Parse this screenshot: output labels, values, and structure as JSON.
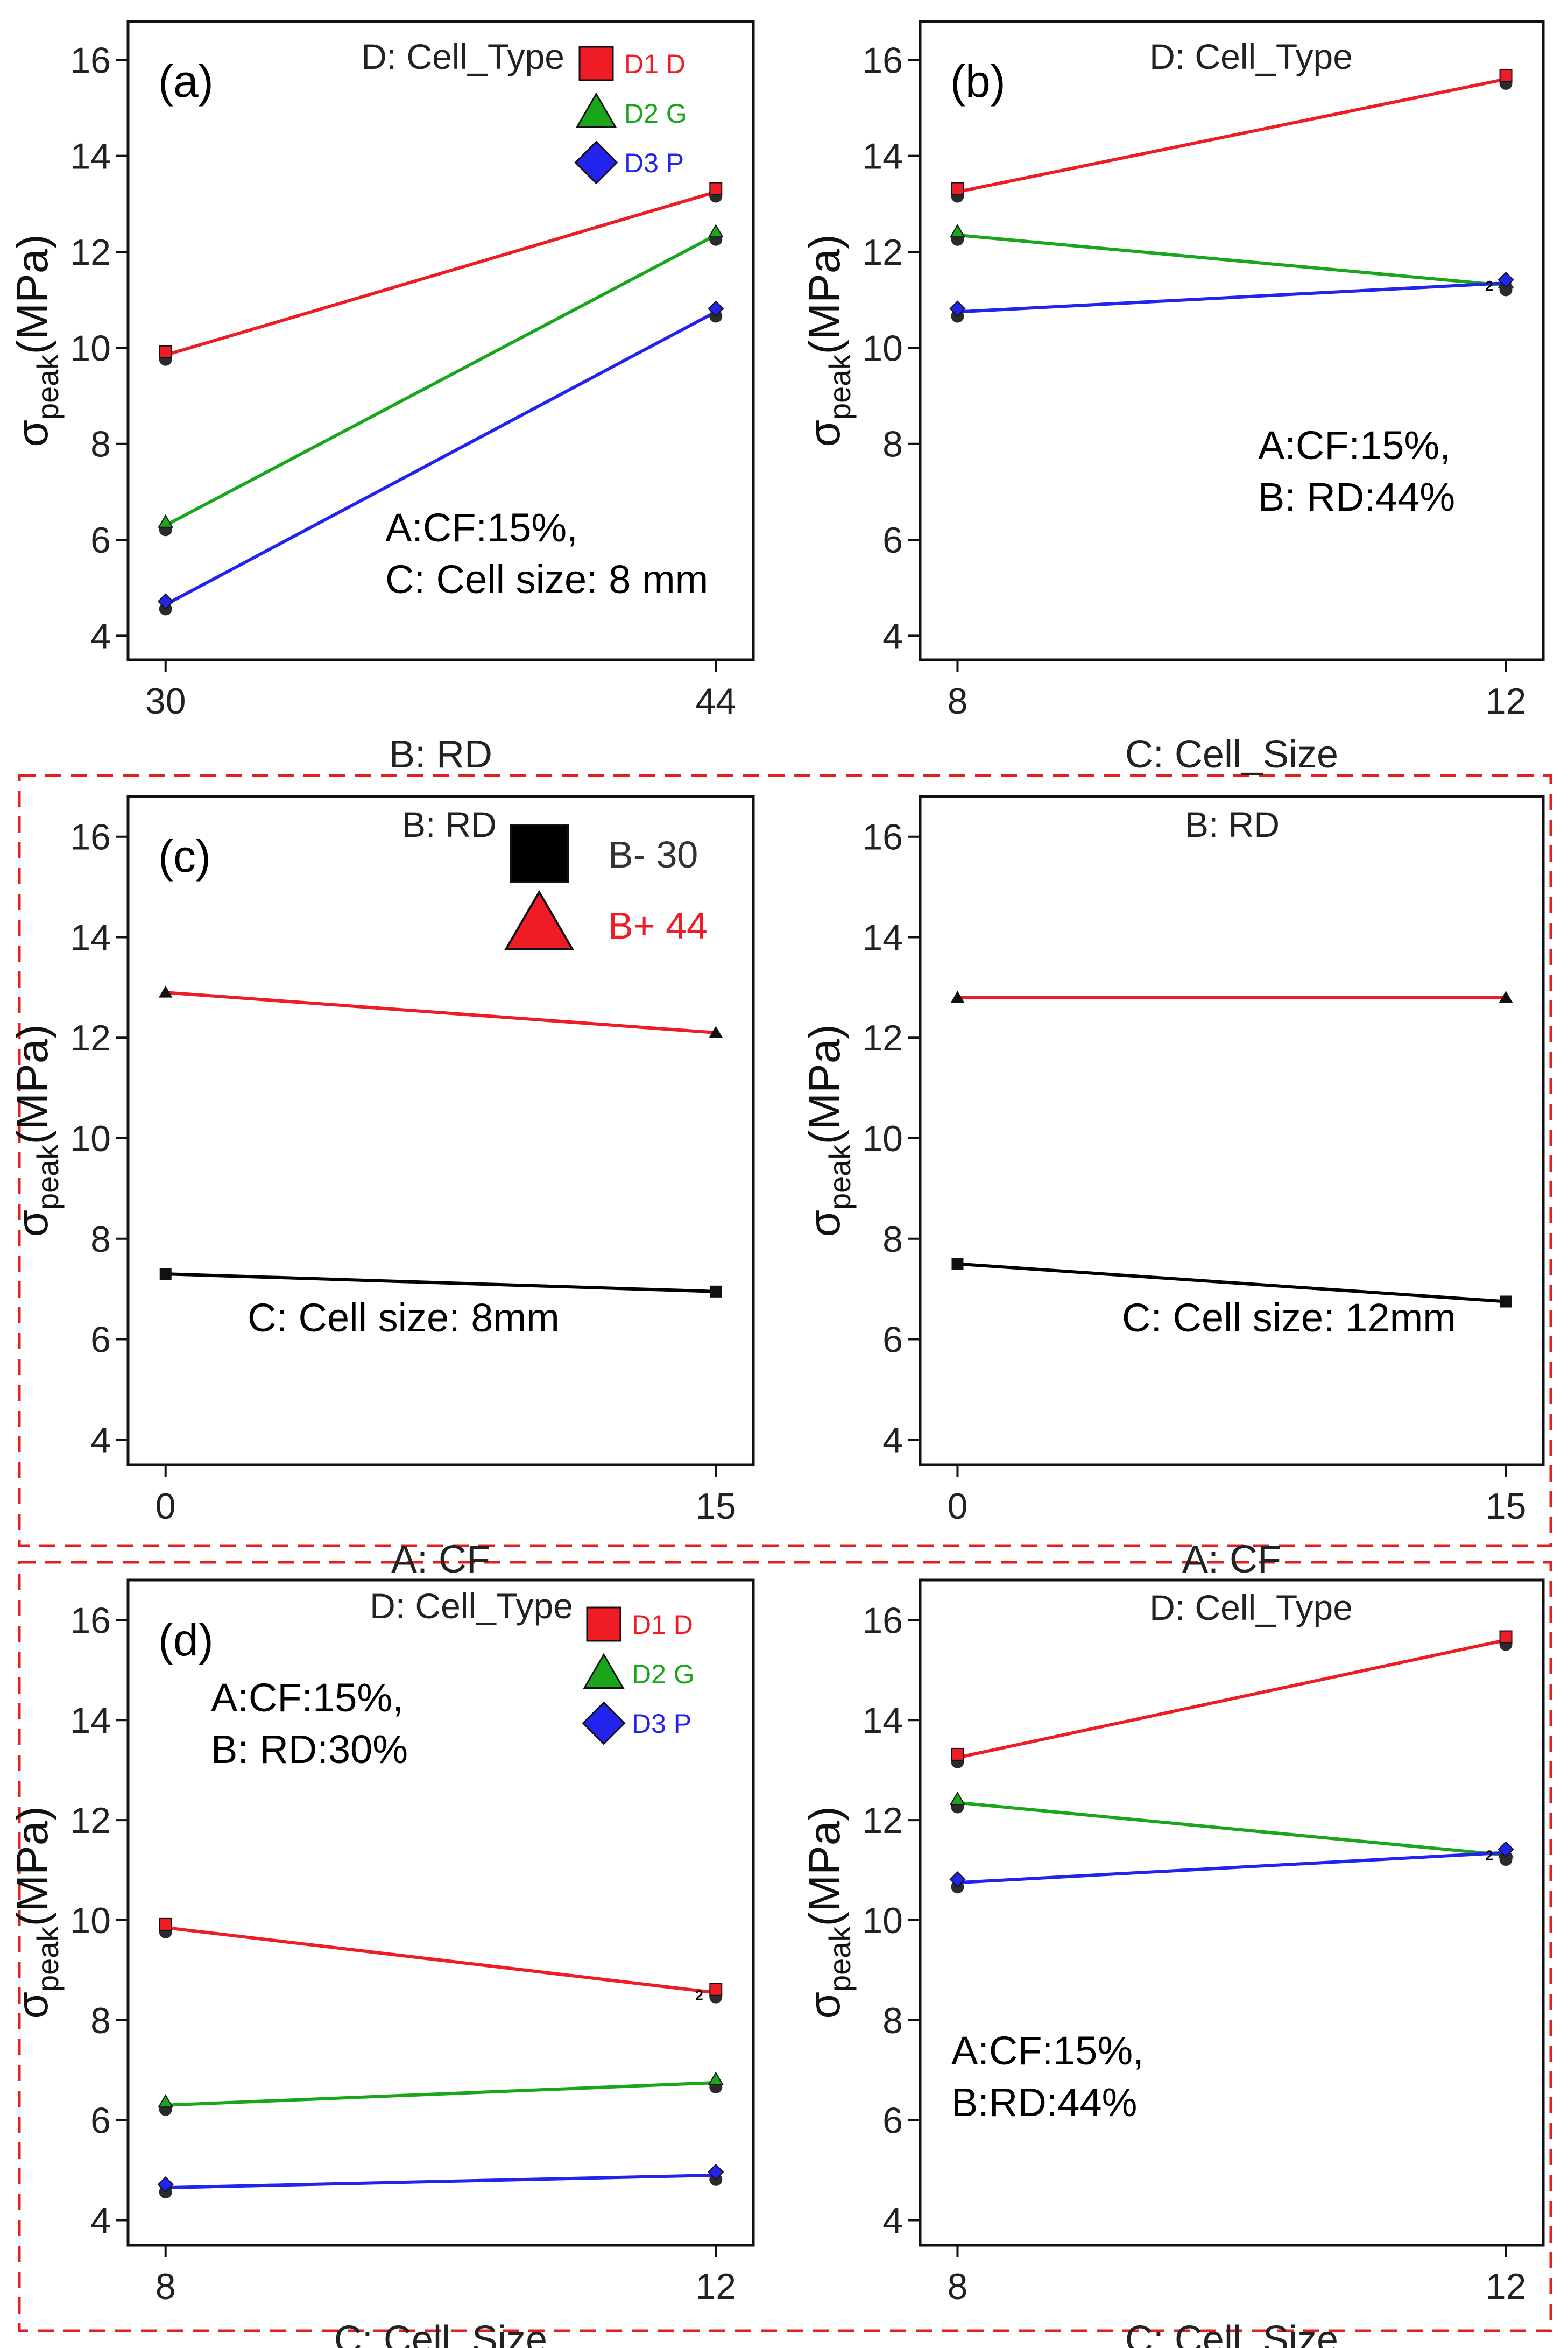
{
  "colors": {
    "red": "#ee1c25",
    "green": "#1aa61a",
    "blue": "#2323ee",
    "black": "#000000",
    "dash": "#e02020"
  },
  "chart_data": [
    {
      "id": "a",
      "type": "line",
      "panel_label": "(a)",
      "factor_title": "D: Cell_Type",
      "xlabel": "B: RD",
      "ylabel": "σ",
      "ylabel_sub": "peak",
      "ylabel_unit": "(MPa)",
      "categories": [
        "30",
        "44"
      ],
      "ylim": [
        3.5,
        16.8
      ],
      "yticks": [
        4,
        6,
        8,
        10,
        12,
        14,
        16
      ],
      "series": [
        {
          "name": "D1 D",
          "marker": "square",
          "color": "red",
          "values": [
            9.85,
            13.25
          ]
        },
        {
          "name": "D2 G",
          "marker": "triangle",
          "color": "green",
          "values": [
            6.3,
            12.35
          ]
        },
        {
          "name": "D3 P",
          "marker": "diamond",
          "color": "blue",
          "values": [
            4.65,
            10.75
          ]
        }
      ],
      "legend": [
        {
          "name": "D1 D",
          "marker": "square",
          "color": "red"
        },
        {
          "name": "D2 G",
          "marker": "triangle",
          "color": "green"
        },
        {
          "name": "D3 P",
          "marker": "diamond",
          "color": "blue"
        }
      ],
      "annotation": [
        "A:CF:15%,",
        "C: Cell size: 8 mm"
      ],
      "point_labels": []
    },
    {
      "id": "b",
      "type": "line",
      "panel_label": "(b)",
      "factor_title": "D: Cell_Type",
      "xlabel": "C: Cell_Size",
      "ylabel": "σ",
      "ylabel_sub": "peak",
      "ylabel_unit": "(MPa)",
      "categories": [
        "8",
        "12"
      ],
      "ylim": [
        3.5,
        16.8
      ],
      "yticks": [
        4,
        6,
        8,
        10,
        12,
        14,
        16
      ],
      "series": [
        {
          "name": "D1 D",
          "marker": "square",
          "color": "red",
          "values": [
            13.25,
            15.6
          ]
        },
        {
          "name": "D2 G",
          "marker": "triangle",
          "color": "green",
          "values": [
            12.35,
            11.3
          ]
        },
        {
          "name": "D3 P",
          "marker": "diamond",
          "color": "blue",
          "values": [
            10.75,
            11.35
          ]
        }
      ],
      "legend": [],
      "annotation": [
        "A:CF:15%,",
        "B: RD:44%"
      ],
      "point_labels": [
        "2"
      ]
    },
    {
      "id": "c1",
      "type": "line",
      "panel_label": "(c)",
      "factor_title": "B: RD",
      "xlabel": "A: CF",
      "ylabel": "σ",
      "ylabel_sub": "peak",
      "ylabel_unit": "(MPa)",
      "categories": [
        "0",
        "15"
      ],
      "ylim": [
        3.5,
        16.8
      ],
      "yticks": [
        4,
        6,
        8,
        10,
        12,
        14,
        16
      ],
      "series": [
        {
          "name": "B+ 44",
          "marker": "triangle",
          "color": "red",
          "values": [
            12.9,
            12.1
          ]
        },
        {
          "name": "B- 30",
          "marker": "square",
          "color": "black",
          "values": [
            7.3,
            6.95
          ]
        }
      ],
      "legend": [
        {
          "name": "B- 30",
          "marker": "square",
          "color": "black"
        },
        {
          "name": "B+ 44",
          "marker": "triangle",
          "color": "red"
        }
      ],
      "annotation": [
        "C: Cell size:  8mm"
      ],
      "point_labels": []
    },
    {
      "id": "c2",
      "type": "line",
      "panel_label": "",
      "factor_title": "B: RD",
      "xlabel": "A: CF",
      "ylabel": "σ",
      "ylabel_sub": "peak",
      "ylabel_unit": "(MPa)",
      "categories": [
        "0",
        "15"
      ],
      "ylim": [
        3.5,
        16.8
      ],
      "yticks": [
        4,
        6,
        8,
        10,
        12,
        14,
        16
      ],
      "series": [
        {
          "name": "B+ 44",
          "marker": "triangle",
          "color": "red",
          "values": [
            12.8,
            12.8
          ]
        },
        {
          "name": "B- 30",
          "marker": "square",
          "color": "black",
          "values": [
            7.5,
            6.75
          ]
        }
      ],
      "legend": [],
      "annotation": [
        "C: Cell size:  12mm"
      ],
      "point_labels": []
    },
    {
      "id": "d1",
      "type": "line",
      "panel_label": "(d)",
      "factor_title": "D: Cell_Type",
      "xlabel": "C: Cell_Size",
      "ylabel": "σ",
      "ylabel_sub": "peak",
      "ylabel_unit": "(MPa)",
      "categories": [
        "8",
        "12"
      ],
      "ylim": [
        3.5,
        16.8
      ],
      "yticks": [
        4,
        6,
        8,
        10,
        12,
        14,
        16
      ],
      "series": [
        {
          "name": "D1 D",
          "marker": "square",
          "color": "red",
          "values": [
            9.85,
            8.55
          ]
        },
        {
          "name": "D2 G",
          "marker": "triangle",
          "color": "green",
          "values": [
            6.3,
            6.75
          ]
        },
        {
          "name": "D3 P",
          "marker": "diamond",
          "color": "blue",
          "values": [
            4.65,
            4.9
          ]
        }
      ],
      "legend": [
        {
          "name": "D1 D",
          "marker": "square",
          "color": "red"
        },
        {
          "name": "D2 G",
          "marker": "triangle",
          "color": "green"
        },
        {
          "name": "D3 P",
          "marker": "diamond",
          "color": "blue"
        }
      ],
      "annotation": [
        "A:CF:15%,",
        "B: RD:30%"
      ],
      "point_labels": [
        "2"
      ]
    },
    {
      "id": "d2",
      "type": "line",
      "panel_label": "",
      "factor_title": "D: Cell_Type",
      "xlabel": "C: Cell_Size",
      "ylabel": "σ",
      "ylabel_sub": "peak",
      "ylabel_unit": "(MPa)",
      "categories": [
        "8",
        "12"
      ],
      "ylim": [
        3.5,
        16.8
      ],
      "yticks": [
        4,
        6,
        8,
        10,
        12,
        14,
        16
      ],
      "series": [
        {
          "name": "D1 D",
          "marker": "square",
          "color": "red",
          "values": [
            13.25,
            15.6
          ]
        },
        {
          "name": "D2 G",
          "marker": "triangle",
          "color": "green",
          "values": [
            12.35,
            11.3
          ]
        },
        {
          "name": "D3 P",
          "marker": "diamond",
          "color": "blue",
          "values": [
            10.75,
            11.35
          ]
        }
      ],
      "legend": [],
      "annotation": [
        "A:CF:15%,",
        "B:RD:44%"
      ],
      "point_labels": [
        "2"
      ]
    }
  ]
}
